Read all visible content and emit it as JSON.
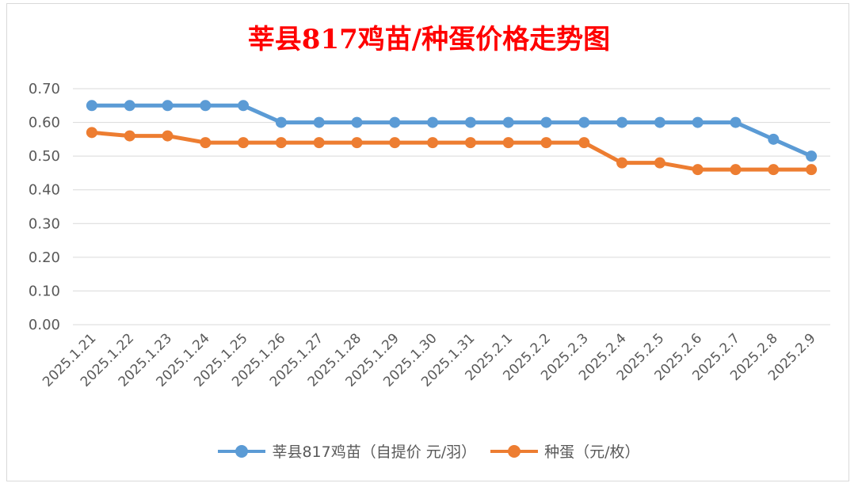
{
  "chart_data": {
    "type": "line",
    "title": "莘县817鸡苗/种蛋价格走势图",
    "categories": [
      "2025.1.21",
      "2025.1.22",
      "2025.1.23",
      "2025.1.24",
      "2025.1.25",
      "2025.1.26",
      "2025.1.27",
      "2025.1.28",
      "2025.1.29",
      "2025.1.30",
      "2025.1.31",
      "2025.2.1",
      "2025.2.2",
      "2025.2.3",
      "2025.2.4",
      "2025.2.5",
      "2025.2.6",
      "2025.2.7",
      "2025.2.8",
      "2025.2.9"
    ],
    "y_ticks": [
      "0.00",
      "0.10",
      "0.20",
      "0.30",
      "0.40",
      "0.50",
      "0.60",
      "0.70"
    ],
    "ylim": [
      0,
      0.7
    ],
    "grid": true,
    "legend_position": "bottom",
    "series": [
      {
        "name": "莘县817鸡苗（自提价 元/羽）",
        "color": "#5b9bd5",
        "values": [
          0.65,
          0.65,
          0.65,
          0.65,
          0.65,
          0.6,
          0.6,
          0.6,
          0.6,
          0.6,
          0.6,
          0.6,
          0.6,
          0.6,
          0.6,
          0.6,
          0.6,
          0.6,
          0.55,
          0.5
        ]
      },
      {
        "name": "种蛋（元/枚）",
        "color": "#ed7d31",
        "values": [
          0.57,
          0.56,
          0.56,
          0.54,
          0.54,
          0.54,
          0.54,
          0.54,
          0.54,
          0.54,
          0.54,
          0.54,
          0.54,
          0.54,
          0.48,
          0.48,
          0.46,
          0.46,
          0.46,
          0.46
        ]
      }
    ]
  }
}
